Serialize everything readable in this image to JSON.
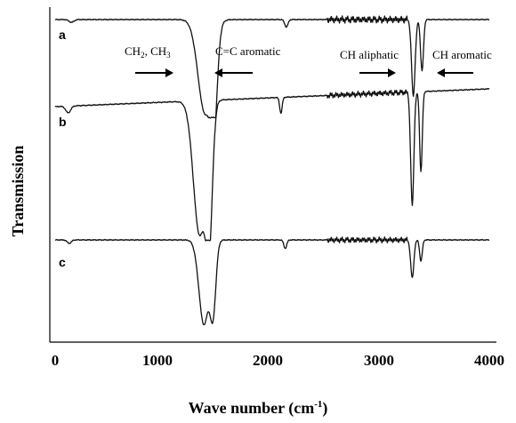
{
  "chart_data": {
    "type": "line",
    "xlabel": "Wave number (cm",
    "xlabel_sup": "-1",
    "xlabel_tail": ")",
    "ylabel": "Transmission",
    "xlim": [
      0,
      4000
    ],
    "xticks": [
      "0",
      "1000",
      "2000",
      "3000",
      "4000"
    ],
    "yticks_shown": false,
    "grid": false,
    "series": [
      {
        "name": "a",
        "offset": 0,
        "dips": [
          {
            "x": 150,
            "depth": 0.03,
            "width": 30
          },
          {
            "x": 1380,
            "depth": 1.0,
            "width": 85
          },
          {
            "x": 1465,
            "depth": 0.85,
            "width": 40
          },
          {
            "x": 2130,
            "depth": 0.08,
            "width": 20
          },
          {
            "x": 3300,
            "depth": 0.82,
            "width": 22
          },
          {
            "x": 3380,
            "depth": 0.55,
            "width": 18
          }
        ]
      },
      {
        "name": "b",
        "offset": 1,
        "dips": [
          {
            "x": 120,
            "depth": 0.05,
            "width": 30
          },
          {
            "x": 1330,
            "depth": 1.0,
            "width": 75
          },
          {
            "x": 1420,
            "depth": 0.9,
            "width": 40
          },
          {
            "x": 2080,
            "depth": 0.12,
            "width": 15
          },
          {
            "x": 3290,
            "depth": 0.85,
            "width": 20
          },
          {
            "x": 3370,
            "depth": 0.6,
            "width": 16
          }
        ]
      },
      {
        "name": "c",
        "offset": 2,
        "dips": [
          {
            "x": 130,
            "depth": 0.04,
            "width": 25
          },
          {
            "x": 1370,
            "depth": 1.0,
            "width": 60
          },
          {
            "x": 1455,
            "depth": 0.8,
            "width": 35
          },
          {
            "x": 2120,
            "depth": 0.1,
            "width": 18
          },
          {
            "x": 3290,
            "depth": 0.45,
            "width": 20
          },
          {
            "x": 3370,
            "depth": 0.25,
            "width": 16
          }
        ]
      }
    ],
    "annotations": [
      {
        "text": "CH",
        "sub": "2",
        "tail": ", CH",
        "sub2": "3",
        "arrow": "right",
        "x": 1000
      },
      {
        "text": "C=C aromatic",
        "arrow": "left",
        "x": 1700
      },
      {
        "text": "CH aliphatic",
        "arrow": "right",
        "x": 3050
      },
      {
        "text": "CH aromatic",
        "arrow": "left",
        "x": 3600
      }
    ]
  }
}
